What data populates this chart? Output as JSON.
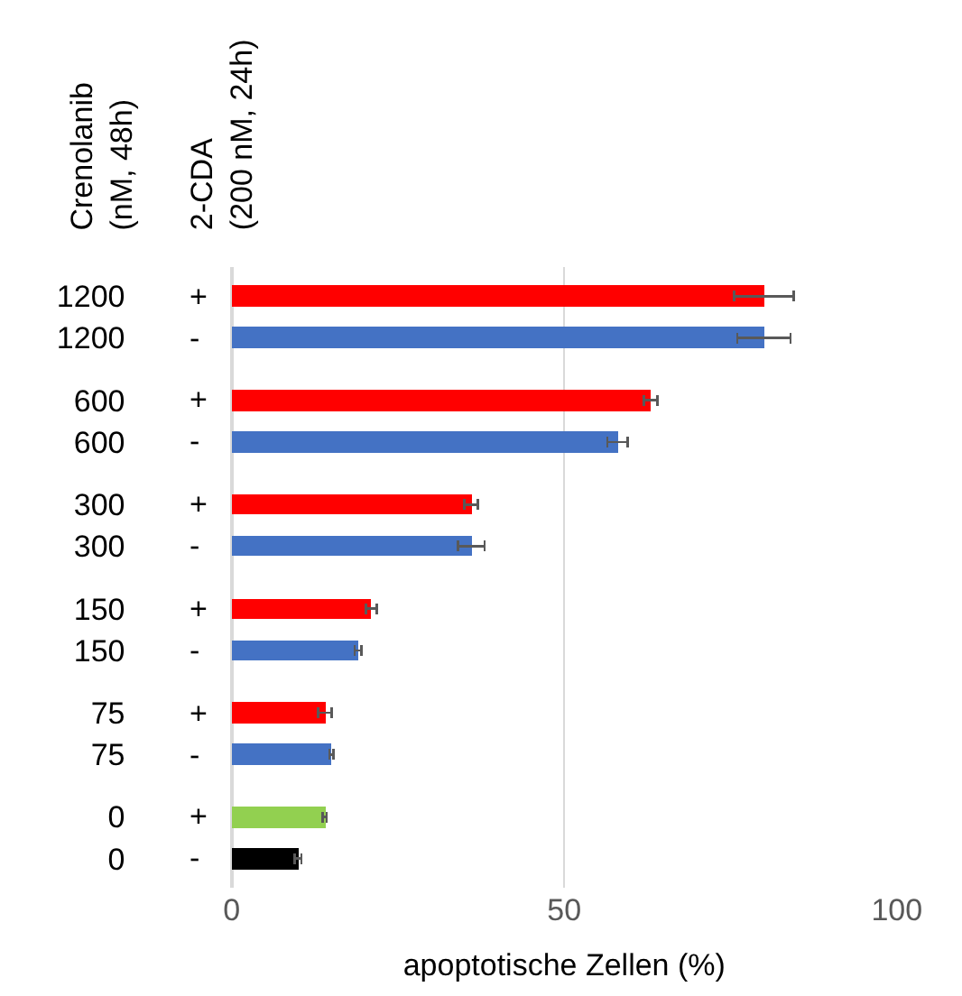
{
  "chart_data": {
    "type": "bar",
    "orientation": "horizontal",
    "ylabel": "Crenolanib\n(nM, 48h)",
    "y2label": "2-CDA\n(200 nM, 24h)",
    "xlabel": "apoptotische Zellen (%)",
    "categories": [
      "1200",
      "1200",
      "600",
      "600",
      "300",
      "300",
      "150",
      "150",
      "75",
      "75",
      "0",
      "0"
    ],
    "y2_categories": [
      "+",
      "-",
      "+",
      "-",
      "+",
      "-",
      "+",
      "-",
      "+",
      "-",
      "+",
      "-"
    ],
    "values": [
      80,
      80,
      63,
      58,
      36,
      36,
      21,
      19,
      14,
      15,
      14,
      10
    ],
    "errors": [
      4.5,
      4,
      1,
      1.5,
      1,
      2,
      0.8,
      0.5,
      1,
      0.3,
      0.3,
      0.5
    ],
    "colors": [
      "#ff0000",
      "#4472c4",
      "#ff0000",
      "#4472c4",
      "#ff0000",
      "#4472c4",
      "#ff0000",
      "#4472c4",
      "#ff0000",
      "#4472c4",
      "#92d050",
      "#000000"
    ],
    "xlim": [
      0,
      100
    ],
    "xticks": [
      0,
      50,
      100
    ],
    "grid": "x",
    "legend": false
  }
}
